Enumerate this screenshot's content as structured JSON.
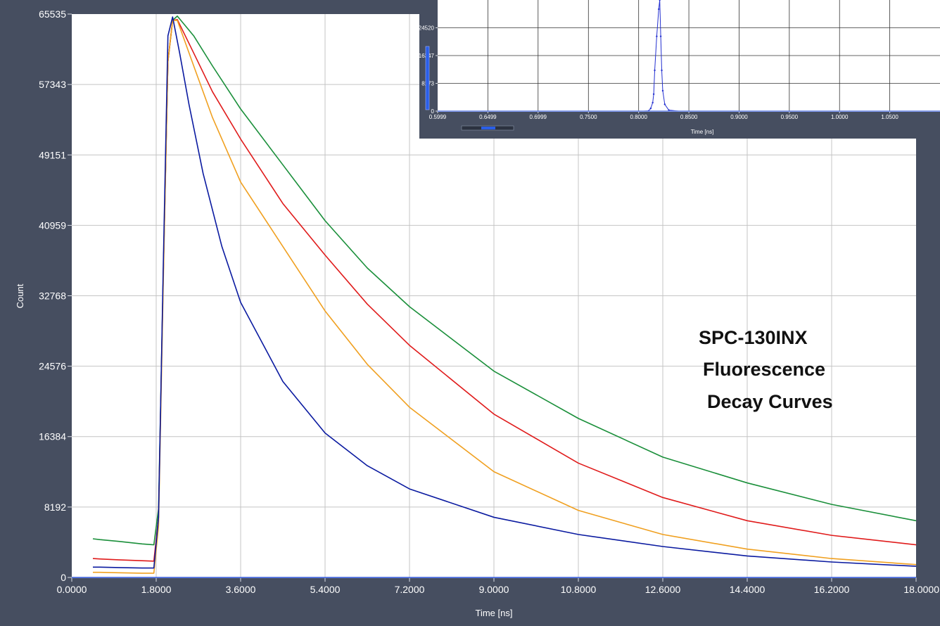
{
  "chart_data": [
    {
      "type": "line",
      "title": "",
      "xlabel": "Time [ns]",
      "ylabel": "Count",
      "xlim": [
        0,
        18
      ],
      "ylim": [
        0,
        65535
      ],
      "grid": true,
      "legend": "none",
      "x_ticks": [
        "0.0000",
        "1.8000",
        "3.6000",
        "5.4000",
        "7.2000",
        "9.0000",
        "10.8000",
        "12.6000",
        "14.4000",
        "16.2000",
        "18.0000"
      ],
      "y_ticks": [
        "0",
        "8192",
        "16384",
        "24576",
        "32768",
        "40959",
        "49151",
        "57343",
        "65535"
      ],
      "annotation": [
        "SPC-130INX",
        "Fluorescence",
        "Decay Curves"
      ],
      "series": [
        {
          "color": "#1a8f3a",
          "x": [
            0.45,
            0.6,
            1.0,
            1.5,
            1.75,
            1.85,
            1.95,
            2.05,
            2.15,
            2.25,
            2.6,
            3.0,
            3.6,
            4.5,
            5.4,
            6.3,
            7.2,
            9.0,
            10.8,
            12.6,
            14.4,
            16.2,
            18.0
          ],
          "y": [
            4500,
            4400,
            4200,
            3900,
            3800,
            8000,
            35000,
            60000,
            64800,
            65300,
            63000,
            59500,
            54500,
            48000,
            41500,
            36000,
            31500,
            24000,
            18500,
            14000,
            11000,
            8500,
            6600
          ]
        },
        {
          "color": "#e01b1b",
          "x": [
            0.45,
            0.6,
            1.0,
            1.5,
            1.75,
            1.85,
            1.95,
            2.05,
            2.15,
            2.25,
            2.6,
            3.0,
            3.6,
            4.5,
            5.4,
            6.3,
            7.2,
            9.0,
            10.8,
            12.6,
            14.4,
            16.2,
            18.0
          ],
          "y": [
            2200,
            2150,
            2050,
            1950,
            1900,
            7000,
            35000,
            60000,
            64800,
            64900,
            61000,
            56500,
            51000,
            43500,
            37500,
            31800,
            27000,
            19000,
            13300,
            9300,
            6600,
            4900,
            3800
          ]
        },
        {
          "color": "#f0a020",
          "x": [
            0.45,
            0.6,
            1.0,
            1.5,
            1.75,
            1.85,
            1.95,
            2.05,
            2.15,
            2.25,
            2.6,
            3.0,
            3.6,
            4.5,
            5.4,
            6.3,
            7.2,
            9.0,
            10.8,
            12.6,
            14.4,
            16.2,
            18.0
          ],
          "y": [
            600,
            600,
            550,
            500,
            500,
            6000,
            34000,
            60000,
            64800,
            64800,
            59500,
            53500,
            46000,
            38500,
            31000,
            24800,
            19800,
            12300,
            7800,
            5000,
            3300,
            2200,
            1500
          ]
        },
        {
          "color": "#0a1aa0",
          "x": [
            0.45,
            0.6,
            1.0,
            1.5,
            1.75,
            1.85,
            1.95,
            2.05,
            2.15,
            2.3,
            2.5,
            2.8,
            3.2,
            3.6,
            4.5,
            5.4,
            6.3,
            7.2,
            9.0,
            10.8,
            12.6,
            14.4,
            16.2,
            18.0
          ],
          "y": [
            1200,
            1200,
            1150,
            1100,
            1100,
            7000,
            36000,
            63000,
            65200,
            61000,
            55000,
            47000,
            38500,
            32000,
            22800,
            16800,
            13000,
            10300,
            7000,
            5000,
            3600,
            2500,
            1800,
            1300
          ]
        }
      ]
    },
    {
      "type": "line",
      "title": "",
      "xlabel": "Time [ns]",
      "ylabel": "",
      "xlim": [
        0.5999,
        1.1
      ],
      "ylim": [
        0,
        32694
      ],
      "grid": true,
      "legend": "none",
      "x_ticks": [
        "0.5999",
        "0.6499",
        "0.6999",
        "0.7500",
        "0.8000",
        "0.8500",
        "0.9000",
        "0.9500",
        "1.0000",
        "1.0500"
      ],
      "y_ticks": [
        "0",
        "8173",
        "16347",
        "24520"
      ],
      "series": [
        {
          "color": "#2430d0",
          "x": [
            0.5999,
            0.805,
            0.81,
            0.812,
            0.814,
            0.815,
            0.816,
            0.818,
            0.82,
            0.821,
            0.822,
            0.823,
            0.824,
            0.826,
            0.83,
            0.84,
            1.1
          ],
          "y": [
            0,
            0,
            100,
            800,
            2500,
            5000,
            12000,
            22000,
            30000,
            32694,
            22000,
            12000,
            6000,
            2000,
            300,
            0,
            0
          ]
        }
      ]
    }
  ]
}
